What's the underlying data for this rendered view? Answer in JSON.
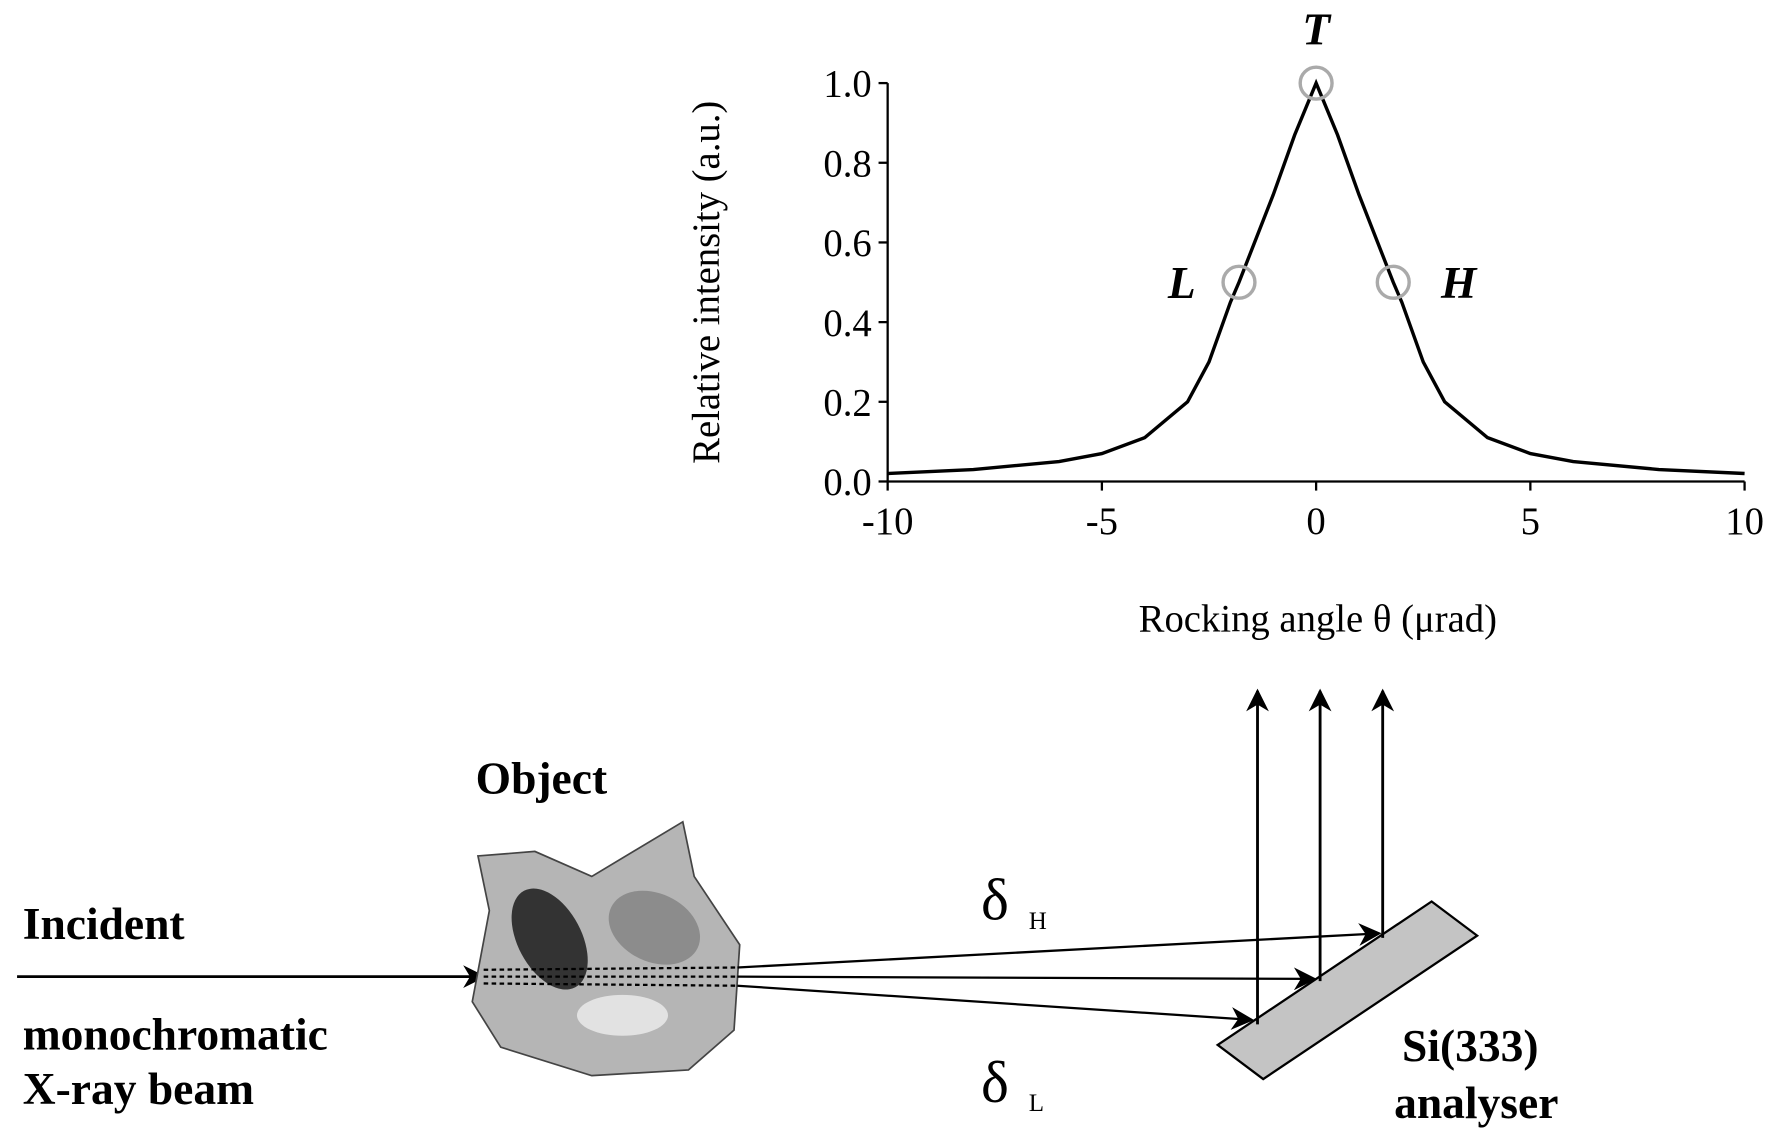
{
  "chart_data": {
    "type": "line",
    "xlabel": "Rocking angle θ (μrad)",
    "ylabel": "Relative intensity (a.u.)",
    "x": [
      -10,
      -8,
      -6,
      -5,
      -4,
      -3,
      -2.5,
      -2,
      -1.8,
      -1,
      -0.5,
      0,
      0.5,
      1,
      1.8,
      2,
      2.5,
      3,
      4,
      5,
      6,
      8,
      10
    ],
    "values": [
      0.02,
      0.03,
      0.05,
      0.07,
      0.11,
      0.2,
      0.3,
      0.45,
      0.5,
      0.72,
      0.87,
      1.0,
      0.87,
      0.72,
      0.5,
      0.45,
      0.3,
      0.2,
      0.11,
      0.07,
      0.05,
      0.03,
      0.02
    ],
    "color": "#000000",
    "xlim": [
      -10,
      10
    ],
    "ylim": [
      0,
      1
    ],
    "xticks": [
      -10,
      -5,
      0,
      5,
      10
    ],
    "yticks": [
      {
        "value": 0,
        "label": "0.0"
      },
      0.2,
      0.4,
      0.6,
      0.8,
      {
        "value": 1,
        "label": "1.0"
      }
    ],
    "annotations": [
      {
        "label": "L",
        "x": -1.8,
        "y": 0.5
      },
      {
        "label": "T",
        "x": 0,
        "y": 1
      },
      {
        "label": "H",
        "x": 1.8,
        "y": 0.5
      }
    ]
  },
  "diagram": {
    "object_label": "Object",
    "incident_lines": [
      "Incident",
      "monochromatic",
      "X-ray beam"
    ],
    "delta_h": {
      "symbol": "δ",
      "subscript": "H"
    },
    "delta_l": {
      "symbol": "δ",
      "subscript": "L"
    },
    "analyser_lines": [
      "Si(333)",
      "analyser"
    ]
  }
}
